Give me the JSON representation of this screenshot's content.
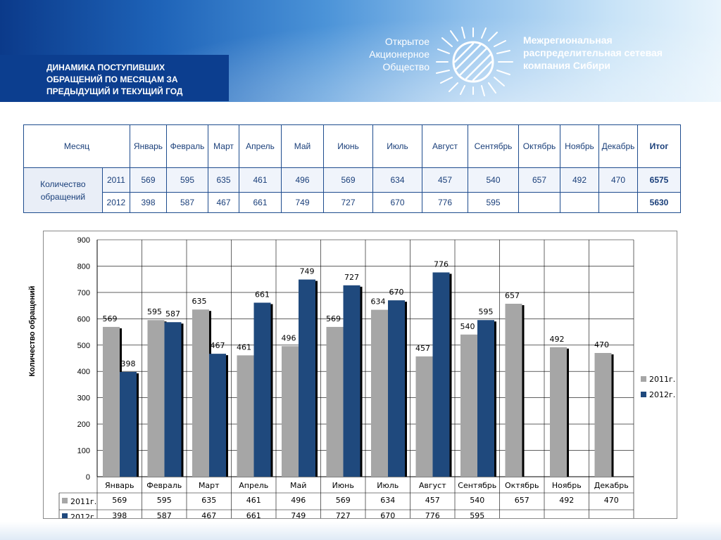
{
  "header": {
    "title": "ДИНАМИКА ПОСТУПИВШИХ ОБРАЩЕНИЙ ПО МЕСЯЦАМ ЗА ПРЕДЫДУЩИЙ И ТЕКУЩИЙ ГОД",
    "company_left_1": "Открытое",
    "company_left_2": "Акционерное",
    "company_left_3": "Общество",
    "company_right_1": "Межрегиональная",
    "company_right_2": "распределительная сетевая",
    "company_right_3": "компания Сибири"
  },
  "table": {
    "month_header": "Месяц",
    "months": [
      "Январь",
      "Февраль",
      "Март",
      "Апрель",
      "Май",
      "Июнь",
      "Июль",
      "Август",
      "Сентябрь",
      "Октябрь",
      "Ноябрь",
      "Декабрь"
    ],
    "total_header": "Итог",
    "row_label": "Количество обращений",
    "rows": [
      {
        "year": "2011",
        "values": [
          "569",
          "595",
          "635",
          "461",
          "496",
          "569",
          "634",
          "457",
          "540",
          "657",
          "492",
          "470"
        ],
        "total": "6575"
      },
      {
        "year": "2012",
        "values": [
          "398",
          "587",
          "467",
          "661",
          "749",
          "727",
          "670",
          "776",
          "595",
          "",
          "",
          ""
        ],
        "total": "5630"
      }
    ]
  },
  "chart_data": {
    "type": "bar",
    "categories": [
      "Январь",
      "Февраль",
      "Март",
      "Апрель",
      "Май",
      "Июнь",
      "Июль",
      "Август",
      "Сентябрь",
      "Октябрь",
      "Ноябрь",
      "Декабрь"
    ],
    "series": [
      {
        "name": "2011г.",
        "color": "#a6a6a6",
        "values": [
          569,
          595,
          635,
          461,
          496,
          569,
          634,
          457,
          540,
          657,
          492,
          470
        ]
      },
      {
        "name": "2012г.",
        "color": "#1f497d",
        "values": [
          398,
          587,
          467,
          661,
          749,
          727,
          670,
          776,
          595,
          null,
          null,
          null
        ]
      }
    ],
    "ylabel": "Количество обращений",
    "ylim": [
      0,
      900
    ],
    "yticks": [
      0,
      100,
      200,
      300,
      400,
      500,
      600,
      700,
      800,
      900
    ],
    "grid": true,
    "legend": "right",
    "data_table": true
  }
}
